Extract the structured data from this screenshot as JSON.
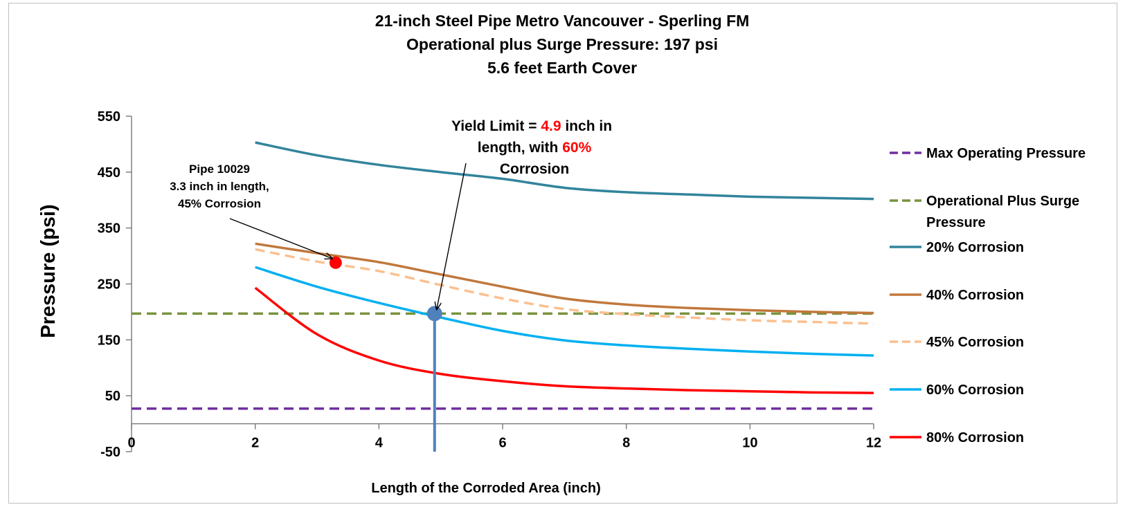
{
  "chart_data": {
    "type": "line",
    "title": [
      "21-inch Steel Pipe Metro Vancouver - Sperling FM",
      "Operational plus Surge Pressure: 197 psi",
      "5.6  feet Earth Cover"
    ],
    "xlabel": "Length of the Corroded Area (inch)",
    "ylabel": "Pressure (psi)",
    "xlim": [
      0,
      12
    ],
    "ylim": [
      -50,
      550
    ],
    "x_ticks": [
      "0",
      "2",
      "4",
      "6",
      "8",
      "10",
      "12"
    ],
    "y_ticks": [
      "550",
      "450",
      "350",
      "250",
      "150",
      "50",
      "-50"
    ],
    "grid": false,
    "legend_position": "right",
    "series": [
      {
        "name": "Max Operating Pressure",
        "style": "dashed",
        "color": "#7030a0",
        "x": [
          0,
          12
        ],
        "y": [
          27,
          27
        ]
      },
      {
        "name": "Operational Plus Surge Pressure",
        "style": "dashed",
        "color": "#77933c",
        "x": [
          0,
          12
        ],
        "y": [
          197,
          197
        ]
      },
      {
        "name": "20% Corrosion",
        "style": "solid",
        "color": "#31849b",
        "x": [
          2,
          3,
          4,
          5,
          6,
          7,
          8,
          9,
          10,
          11,
          12
        ],
        "y": [
          503,
          480,
          463,
          450,
          438,
          422,
          414,
          410,
          406,
          404,
          402
        ]
      },
      {
        "name": "40% Corrosion",
        "style": "solid",
        "color": "#c0783c",
        "x": [
          2,
          3,
          4,
          5,
          6,
          7,
          8,
          9,
          10,
          11,
          12
        ],
        "y": [
          322,
          305,
          289,
          267,
          245,
          224,
          213,
          207,
          203,
          200,
          198
        ]
      },
      {
        "name": "45% Corrosion",
        "style": "dashed",
        "color": "#fac090",
        "x": [
          2,
          3,
          4,
          5,
          6,
          7,
          8,
          9,
          10,
          11,
          12
        ],
        "y": [
          312,
          290,
          273,
          248,
          224,
          205,
          196,
          190,
          185,
          182,
          179
        ]
      },
      {
        "name": "60% Corrosion",
        "style": "solid",
        "color": "#00b0f0",
        "x": [
          2,
          3,
          4,
          5,
          6,
          7,
          8,
          9,
          10,
          11,
          12
        ],
        "y": [
          280,
          245,
          216,
          190,
          166,
          149,
          140,
          134,
          129,
          125,
          122
        ]
      },
      {
        "name": "80% Corrosion",
        "style": "solid",
        "color": "#ff0000",
        "x": [
          2,
          3,
          4,
          5,
          6,
          7,
          8,
          9,
          10,
          11,
          12
        ],
        "y": [
          243,
          160,
          113,
          89,
          76,
          67,
          63,
          60,
          58,
          56,
          55
        ]
      }
    ],
    "markers": [
      {
        "label": "Pipe 10029 point",
        "x": 3.3,
        "y": 288,
        "color": "#ff0000"
      },
      {
        "label": "Yield limit point",
        "x": 4.9,
        "y": 197,
        "color": "#4f81bd"
      }
    ],
    "vertical_line": {
      "x": 4.9,
      "from_y": -50,
      "to_y": 197,
      "color": "#4f81bd"
    },
    "annotations": {
      "pipe": {
        "lines": [
          "Pipe 10029",
          "3.3 inch in length,",
          "45% Corrosion"
        ],
        "arrow_to": {
          "x": 3.3,
          "y": 288
        }
      },
      "yield": {
        "line1_prefix": "Yield Limit = ",
        "line1_value": "4.9",
        "line1_suffix": " inch in",
        "line2_prefix": "length, with ",
        "line2_value": "60%",
        "line3": "Corrosion",
        "highlight_color": "#ff0000",
        "arrow_to": {
          "x": 4.9,
          "y": 197
        }
      }
    }
  }
}
